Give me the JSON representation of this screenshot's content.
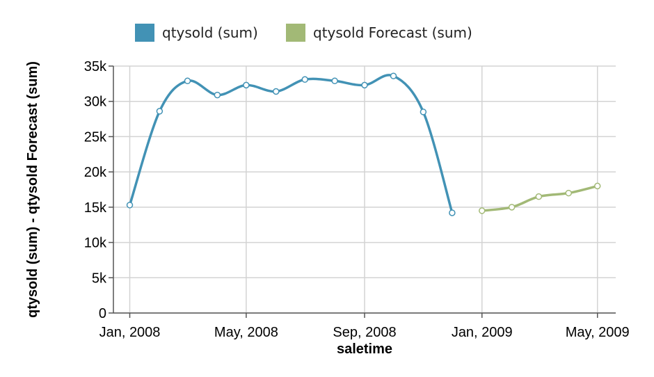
{
  "chart_data": {
    "type": "line",
    "xlabel": "saletime",
    "ylabel": "qtysold (sum) - qtysold Forecast (sum)",
    "ylim": [
      0,
      35000
    ],
    "y_ticks": [
      "0",
      "5k",
      "10k",
      "15k",
      "20k",
      "25k",
      "30k",
      "35k"
    ],
    "y_tick_values": [
      0,
      5000,
      10000,
      15000,
      20000,
      25000,
      30000,
      35000
    ],
    "x_ticks": [
      "Jan, 2008",
      "May, 2008",
      "Sep, 2008",
      "Jan, 2009",
      "May, 2009"
    ],
    "x_tick_dates": [
      "2008-01-01",
      "2008-05-01",
      "2008-09-01",
      "2009-01-01",
      "2009-05-01"
    ],
    "xlim": [
      "2007-12-15",
      "2009-05-20"
    ],
    "grid": true,
    "legend_position": "top",
    "series": [
      {
        "name": "qtysold (sum)",
        "color": "#4292b5",
        "x": [
          "2008-01-01",
          "2008-02-01",
          "2008-03-01",
          "2008-04-01",
          "2008-05-01",
          "2008-06-01",
          "2008-07-01",
          "2008-08-01",
          "2008-09-01",
          "2008-10-01",
          "2008-11-01",
          "2008-12-01"
        ],
        "values": [
          15300,
          28600,
          32900,
          30900,
          32300,
          31400,
          33100,
          32900,
          32300,
          33600,
          28500,
          14200
        ]
      },
      {
        "name": "qtysold Forecast (sum)",
        "color": "#a2b976",
        "x": [
          "2009-01-01",
          "2009-02-01",
          "2009-03-01",
          "2009-04-01",
          "2009-05-01"
        ],
        "values": [
          14500,
          15000,
          16500,
          17000,
          18000
        ]
      }
    ]
  }
}
